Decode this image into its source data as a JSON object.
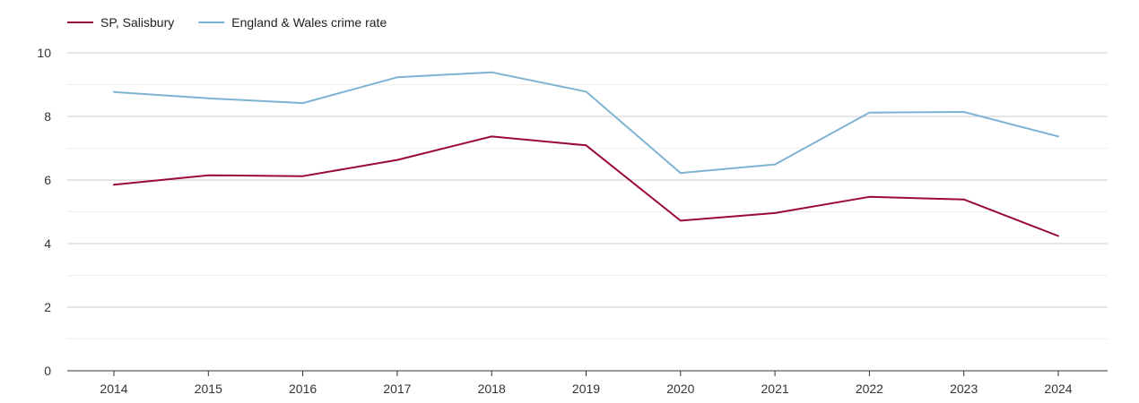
{
  "chart_data": {
    "type": "line",
    "title": "",
    "xlabel": "",
    "ylabel": "",
    "x": [
      "2014",
      "2015",
      "2016",
      "2017",
      "2018",
      "2019",
      "2020",
      "2021",
      "2022",
      "2023",
      "2024"
    ],
    "ylim": [
      0,
      10
    ],
    "yticks": [
      0,
      2,
      4,
      6,
      8,
      10
    ],
    "grid": true,
    "legend_position": "top-left",
    "series": [
      {
        "name": "SP, Salisbury",
        "color": "#9b0a35",
        "values": [
          5.85,
          6.15,
          6.12,
          6.63,
          7.37,
          7.09,
          4.72,
          4.96,
          5.47,
          5.39,
          4.24
        ]
      },
      {
        "name": "England & Wales crime rate",
        "color": "#7eb3d3",
        "values": [
          8.77,
          8.57,
          8.42,
          9.23,
          9.39,
          8.78,
          6.22,
          6.49,
          8.12,
          8.14,
          7.37
        ]
      }
    ]
  }
}
